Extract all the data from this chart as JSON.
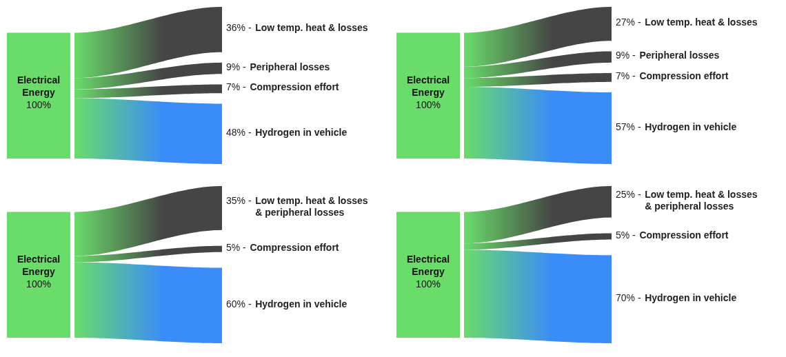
{
  "chart_data": [
    {
      "type": "other",
      "categories": [
        "Low temp. heat & losses",
        "Peripheral losses",
        "Compression effort",
        "Hydrogen in vehicle"
      ],
      "values": [
        36,
        9,
        7,
        48
      ],
      "value_labels": [
        "36% -",
        "9% -",
        "7% -",
        "48% -"
      ],
      "colors": [
        "#454545",
        "#454545",
        "#454545",
        "#3a8cf8"
      ],
      "annotations": [
        "Electrical Energy",
        "100%"
      ]
    },
    {
      "type": "other",
      "categories": [
        "Low temp. heat & losses",
        "Peripheral losses",
        "Compression effort",
        "Hydrogen in vehicle"
      ],
      "values": [
        27,
        9,
        7,
        57
      ],
      "value_labels": [
        "27% -",
        "9% -",
        "7% -",
        "57% -"
      ],
      "colors": [
        "#454545",
        "#454545",
        "#454545",
        "#3a8cf8"
      ],
      "annotations": [
        "Electrical Energy",
        "100%"
      ]
    },
    {
      "type": "other",
      "categories": [
        "Low temp. heat & losses\n& peripheral losses",
        "Compression effort",
        "Hydrogen in vehicle"
      ],
      "values": [
        35,
        5,
        60
      ],
      "value_labels": [
        "35% -",
        "5% -",
        "60% -"
      ],
      "colors": [
        "#454545",
        "#454545",
        "#3a8cf8"
      ],
      "annotations": [
        "Electrical Energy",
        "100%"
      ]
    },
    {
      "type": "other",
      "categories": [
        "Low temp. heat & losses\n& peripheral losses",
        "Compression effort",
        "Hydrogen in vehicle"
      ],
      "values": [
        25,
        5,
        70
      ],
      "value_labels": [
        "25% -",
        "5% -",
        "70% -"
      ],
      "colors": [
        "#454545",
        "#454545",
        "#3a8cf8"
      ],
      "annotations": [
        "Electrical Energy",
        "100%"
      ]
    }
  ]
}
